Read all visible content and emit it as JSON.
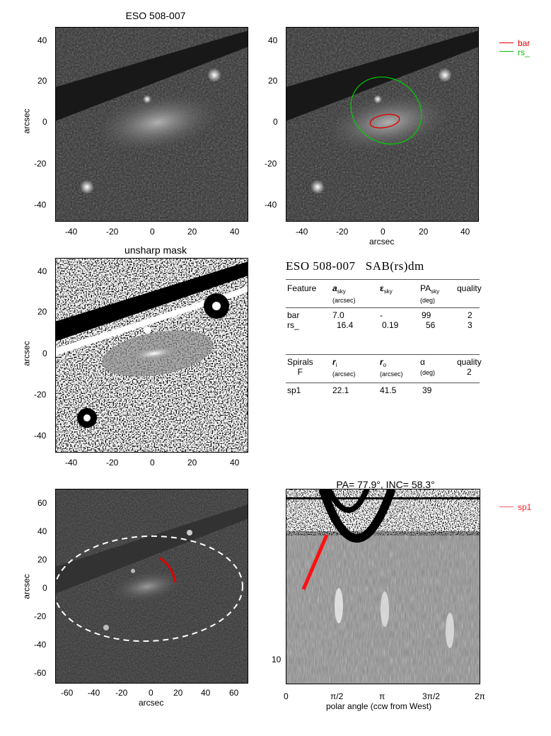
{
  "panel1": {
    "title": "ESO 508-007",
    "ylabel": "arcsec",
    "xticks": [
      "-40",
      "-20",
      "0",
      "20",
      "40"
    ],
    "yticks": [
      "40",
      "20",
      "0",
      "-20",
      "-40"
    ]
  },
  "panel2": {
    "xlabel": "arcsec",
    "xticks": [
      "-40",
      "-20",
      "0",
      "20",
      "40"
    ],
    "yticks": [
      "40",
      "20",
      "0",
      "-20",
      "-40"
    ],
    "legend": [
      {
        "label": "bar",
        "color": "#e00000"
      },
      {
        "label": "rs_",
        "color": "#00c000"
      }
    ]
  },
  "panel3": {
    "title": "unsharp mask",
    "ylabel": "arcsec",
    "xticks": [
      "-40",
      "-20",
      "0",
      "20",
      "40"
    ],
    "yticks": [
      "40",
      "20",
      "0",
      "-20",
      "-40"
    ]
  },
  "table": {
    "heading": "ESO 508-007",
    "heading_class": "SAB(rs)dm",
    "features_header": [
      "Feature",
      "a",
      "sky",
      "(arcsec)",
      "ε",
      "sky",
      "PA",
      "sky",
      "(deg)",
      "quality"
    ],
    "features": [
      {
        "name": "bar",
        "a": "7.0",
        "eps": "-",
        "pa": "99",
        "q": "2"
      },
      {
        "name": "rs_",
        "a": "16.4",
        "eps": "0.19",
        "pa": "56",
        "q": "3"
      }
    ],
    "spirals_header": {
      "c1": "Spirals",
      "c1b": "F",
      "r_i": "r",
      "r_i_sub": "i",
      "r_i_unit": "(arcsec)",
      "r_o": "r",
      "r_o_sub": "o",
      "r_o_unit": "(arcsec)",
      "alpha": "α",
      "alpha_unit": "(deg)",
      "q": "quality",
      "q_val": "2"
    },
    "spirals": [
      {
        "name": "sp1",
        "ri": "22.1",
        "ro": "41.5",
        "alpha": "39"
      }
    ]
  },
  "panel5": {
    "ylabel": "arcsec",
    "xlabel": "arcsec",
    "xticks": [
      "-60",
      "-40",
      "-20",
      "0",
      "20",
      "40",
      "60"
    ],
    "yticks": [
      "60",
      "40",
      "20",
      "0",
      "-20",
      "-40",
      "-60"
    ]
  },
  "panel6": {
    "title": "PA=  77.9°, INC=  58.3°",
    "xlabel": "polar angle (ccw from West)",
    "xticks": [
      "0",
      "π/2",
      "π",
      "3π/2",
      "2π"
    ],
    "ytick": "10",
    "legend": [
      {
        "label": "sp1",
        "color": "#ff6060"
      }
    ]
  }
}
